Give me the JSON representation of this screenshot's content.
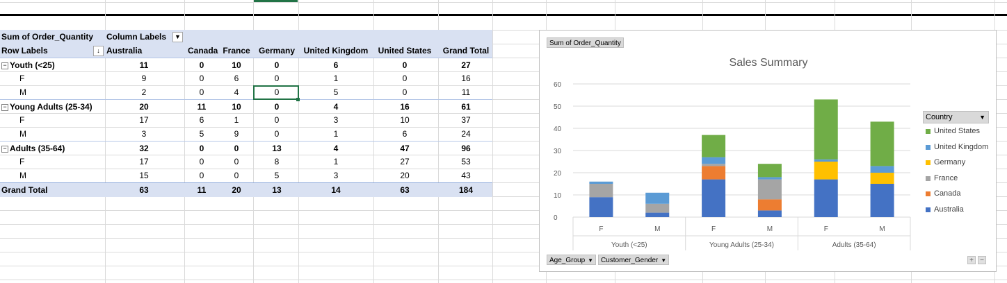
{
  "pivot": {
    "corner_label": "Sum of Order_Quantity",
    "column_labels": "Column Labels",
    "row_labels": "Row Labels",
    "columns": [
      "Australia",
      "Canada",
      "France",
      "Germany",
      "United Kingdom",
      "United States",
      "Grand Total"
    ],
    "rows": [
      {
        "label": "Youth (<25)",
        "level": 0,
        "values": [
          "11",
          "0",
          "10",
          "0",
          "6",
          "0",
          "27"
        ]
      },
      {
        "label": "F",
        "level": 1,
        "values": [
          "9",
          "0",
          "6",
          "0",
          "1",
          "0",
          "16"
        ]
      },
      {
        "label": "M",
        "level": 1,
        "values": [
          "2",
          "0",
          "4",
          "0",
          "5",
          "0",
          "11"
        ]
      },
      {
        "label": "Young Adults (25-34)",
        "level": 0,
        "values": [
          "20",
          "11",
          "10",
          "0",
          "4",
          "16",
          "61"
        ]
      },
      {
        "label": "F",
        "level": 1,
        "values": [
          "17",
          "6",
          "1",
          "0",
          "3",
          "10",
          "37"
        ]
      },
      {
        "label": "M",
        "level": 1,
        "values": [
          "3",
          "5",
          "9",
          "0",
          "1",
          "6",
          "24"
        ]
      },
      {
        "label": "Adults (35-64)",
        "level": 0,
        "values": [
          "32",
          "0",
          "0",
          "13",
          "4",
          "47",
          "96"
        ]
      },
      {
        "label": "F",
        "level": 1,
        "values": [
          "17",
          "0",
          "0",
          "8",
          "1",
          "27",
          "53"
        ]
      },
      {
        "label": "M",
        "level": 1,
        "values": [
          "15",
          "0",
          "0",
          "5",
          "3",
          "20",
          "43"
        ]
      }
    ],
    "grand_total": {
      "label": "Grand Total",
      "values": [
        "63",
        "11",
        "20",
        "13",
        "14",
        "63",
        "184"
      ]
    },
    "collapse_symbol": "⊟",
    "filter_symbol": "▼",
    "sort_symbol": "↓"
  },
  "chart": {
    "value_field_button": "Sum of Order_Quantity",
    "legend_title": "Country",
    "filter_buttons": [
      "Age_Group",
      "Customer_Gender"
    ],
    "dropdown_symbol": "▼",
    "zoom_in": "+",
    "zoom_out": "−"
  },
  "chart_data": {
    "type": "bar",
    "stacked": true,
    "title": "Sales Summary",
    "categories": [
      "F",
      "M",
      "F",
      "M",
      "F",
      "M"
    ],
    "groups": [
      {
        "label": "Youth (<25)",
        "span": 2
      },
      {
        "label": "Young Adults (25-34)",
        "span": 2
      },
      {
        "label": "Adults (35-64)",
        "span": 2
      }
    ],
    "ylim": [
      0,
      60
    ],
    "yticks": [
      0,
      10,
      20,
      30,
      40,
      50,
      60
    ],
    "grid": true,
    "legend_position": "right",
    "series": [
      {
        "name": "Australia",
        "color": "#4472c4",
        "values": [
          9,
          2,
          17,
          3,
          17,
          15
        ]
      },
      {
        "name": "Canada",
        "color": "#ed7d31",
        "values": [
          0,
          0,
          6,
          5,
          0,
          0
        ]
      },
      {
        "name": "France",
        "color": "#a5a5a5",
        "values": [
          6,
          4,
          1,
          9,
          0,
          0
        ]
      },
      {
        "name": "Germany",
        "color": "#ffc000",
        "values": [
          0,
          0,
          0,
          0,
          8,
          5
        ]
      },
      {
        "name": "United Kingdom",
        "color": "#5b9bd5",
        "values": [
          1,
          5,
          3,
          1,
          1,
          3
        ]
      },
      {
        "name": "United States",
        "color": "#70ad47",
        "values": [
          0,
          0,
          10,
          6,
          27,
          20
        ]
      }
    ]
  }
}
